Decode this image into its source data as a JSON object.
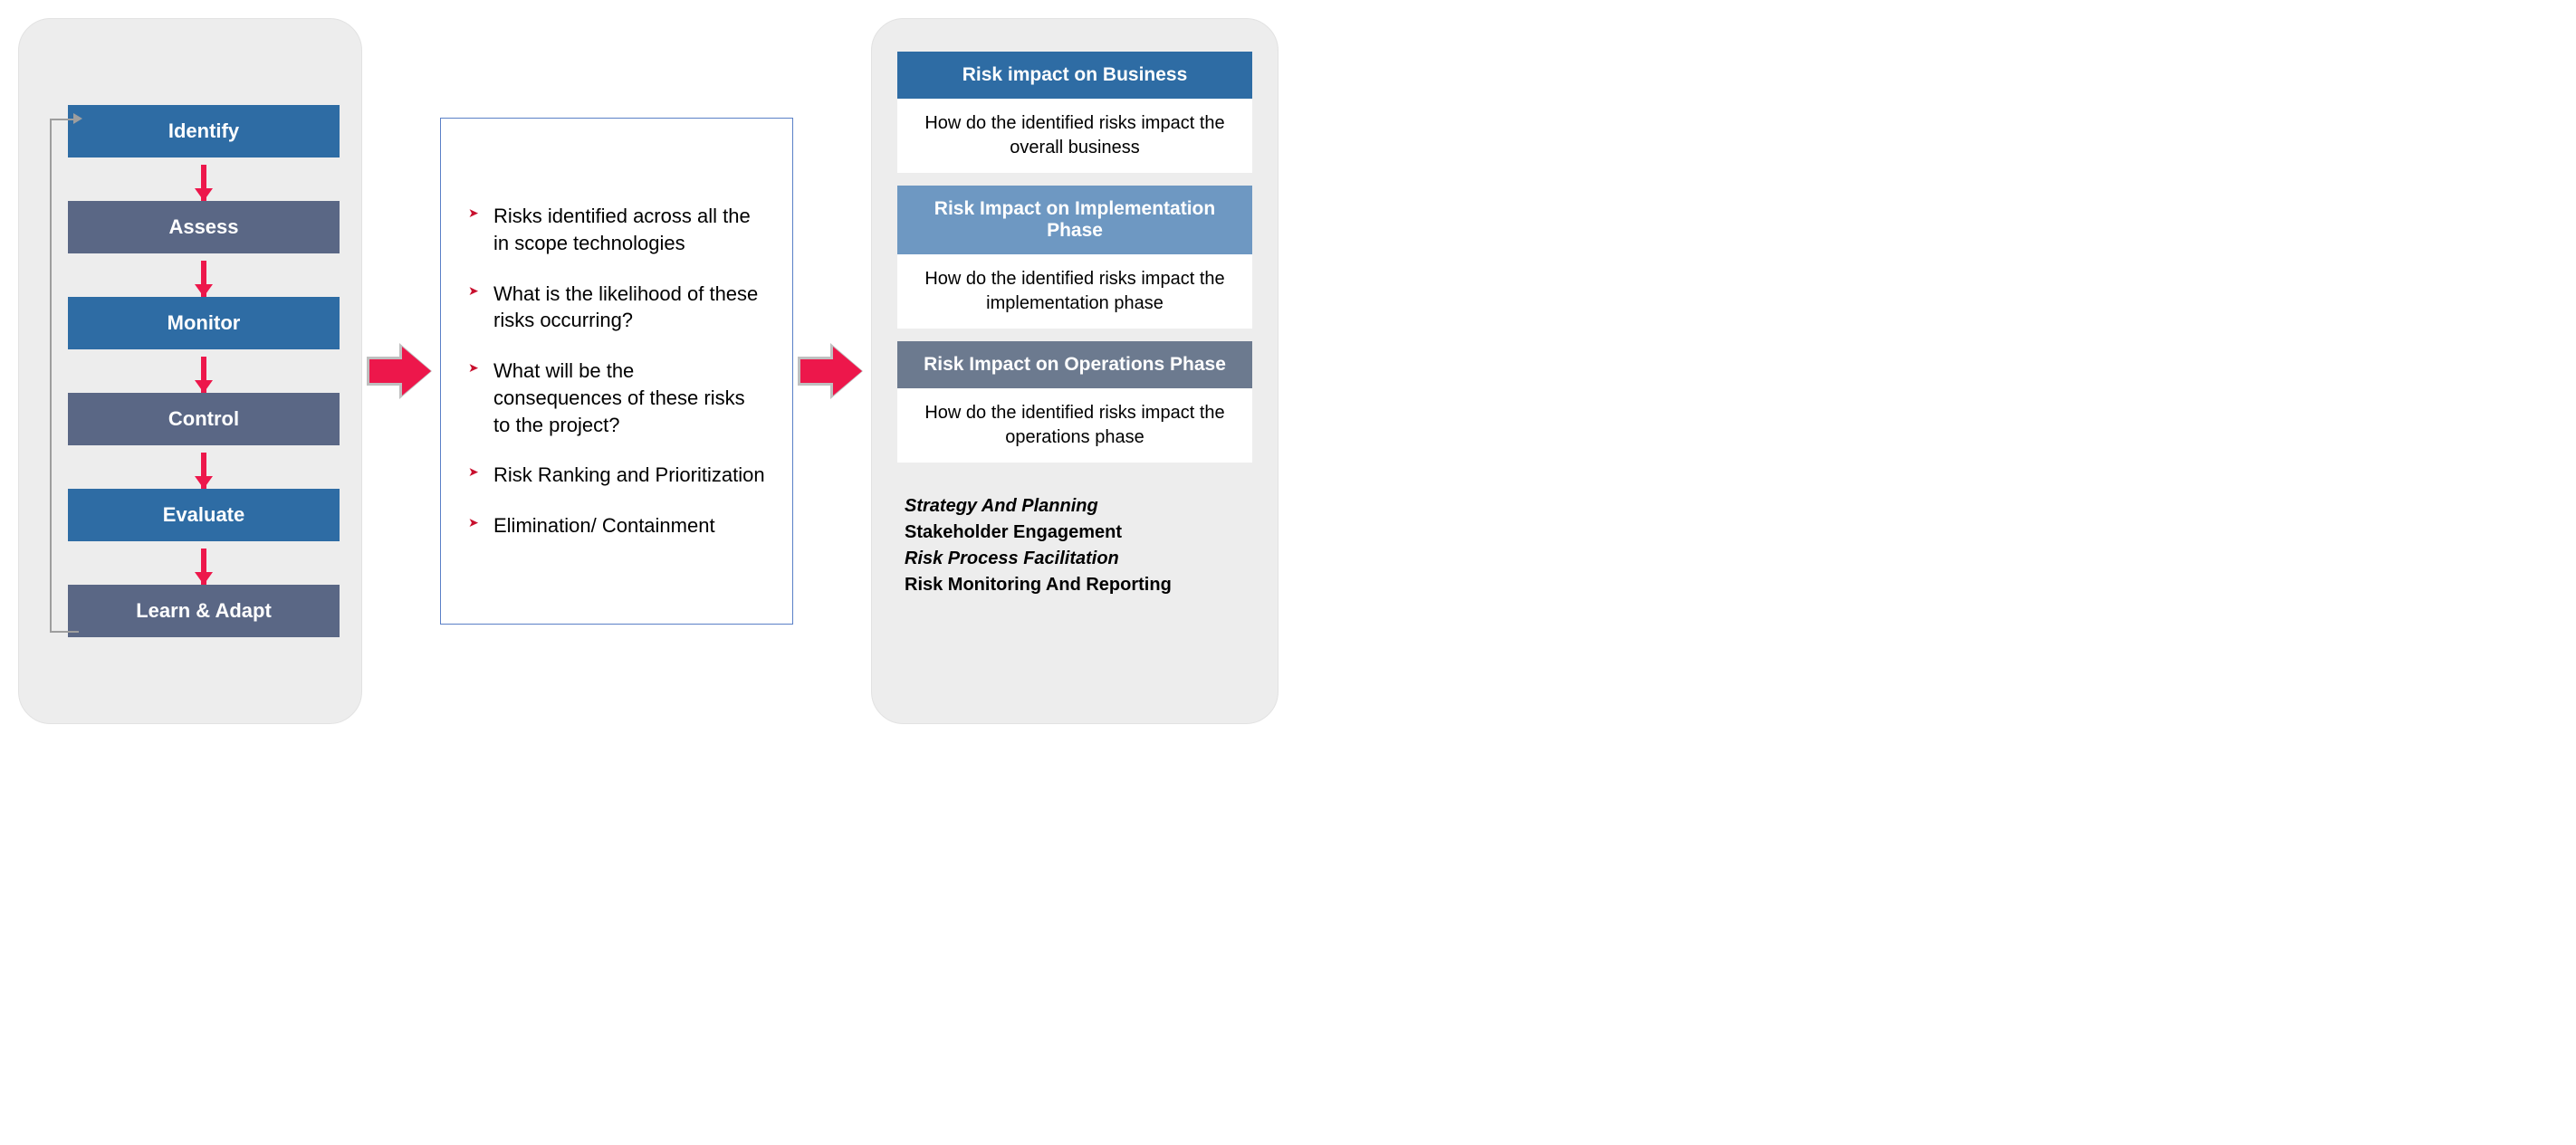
{
  "colors": {
    "panel_bg": "#ededed",
    "panel_border": "#e2e2e2",
    "step_blue": "#2e6ca4",
    "step_slate": "#5a6785",
    "arrow_red": "#ed174b",
    "arrow_outline": "#bfbfbf",
    "loop_gray": "#9e9e9e",
    "mid_border": "#5a80c7",
    "bullet_red": "#c8102e",
    "right_head1": "#2e6ca4",
    "right_head2": "#6e98c2",
    "right_head3": "#6c7a8f"
  },
  "left": {
    "steps": [
      {
        "label": "Identify",
        "bg": "step_blue"
      },
      {
        "label": "Assess",
        "bg": "step_slate"
      },
      {
        "label": "Monitor",
        "bg": "step_blue"
      },
      {
        "label": "Control",
        "bg": "step_slate"
      },
      {
        "label": "Evaluate",
        "bg": "step_blue"
      },
      {
        "label": "Learn & Adapt",
        "bg": "step_slate"
      }
    ]
  },
  "middle": {
    "bullets": [
      "Risks identified across all the in scope technologies",
      "What is the likelihood of these risks occurring?",
      "What will be the consequences of these risks to the project?",
      "Risk Ranking and Prioritization",
      "Elimination/ Containment"
    ]
  },
  "right": {
    "sections": [
      {
        "head": "Risk impact on Business",
        "head_bg": "right_head1",
        "body": "How do the identified risks impact the overall business"
      },
      {
        "head": "Risk Impact on Implementation Phase",
        "head_bg": "right_head2",
        "body": "How do the identified risks impact the implementation phase"
      },
      {
        "head": "Risk Impact on Operations Phase",
        "head_bg": "right_head3",
        "body": "How do the identified risks impact the operations phase"
      }
    ],
    "footer": [
      {
        "text": "Strategy And Planning",
        "style": "italic"
      },
      {
        "text": "Stakeholder Engagement",
        "style": "bold"
      },
      {
        "text": "Risk Process Facilitation",
        "style": "italic"
      },
      {
        "text": "Risk Monitoring And Reporting",
        "style": "bold"
      }
    ]
  }
}
